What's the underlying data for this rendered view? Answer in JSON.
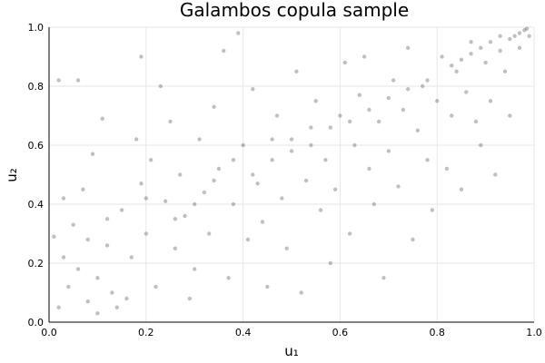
{
  "chart_data": {
    "type": "scatter",
    "title": "Galambos copula sample",
    "xlabel": "u₁",
    "ylabel": "u₂",
    "xlim": [
      0,
      1
    ],
    "ylim": [
      0,
      1
    ],
    "xticks": [
      "0.0",
      "0.2",
      "0.4",
      "0.6",
      "0.8",
      "1.0"
    ],
    "yticks": [
      "0.0",
      "0.2",
      "0.4",
      "0.6",
      "0.8",
      "1.0"
    ],
    "grid": true,
    "legend": "none",
    "point_color": "#000000",
    "points": [
      [
        0.02,
        0.05
      ],
      [
        0.04,
        0.12
      ],
      [
        0.01,
        0.29
      ],
      [
        0.06,
        0.18
      ],
      [
        0.03,
        0.42
      ],
      [
        0.08,
        0.07
      ],
      [
        0.05,
        0.33
      ],
      [
        0.1,
        0.15
      ],
      [
        0.12,
        0.26
      ],
      [
        0.07,
        0.45
      ],
      [
        0.09,
        0.57
      ],
      [
        0.02,
        0.82
      ],
      [
        0.06,
        0.82
      ],
      [
        0.11,
        0.69
      ],
      [
        0.13,
        0.1
      ],
      [
        0.15,
        0.38
      ],
      [
        0.17,
        0.22
      ],
      [
        0.14,
        0.05
      ],
      [
        0.19,
        0.47
      ],
      [
        0.18,
        0.62
      ],
      [
        0.2,
        0.3
      ],
      [
        0.22,
        0.12
      ],
      [
        0.24,
        0.41
      ],
      [
        0.21,
        0.55
      ],
      [
        0.25,
        0.68
      ],
      [
        0.23,
        0.8
      ],
      [
        0.19,
        0.9
      ],
      [
        0.26,
        0.25
      ],
      [
        0.28,
        0.36
      ],
      [
        0.3,
        0.18
      ],
      [
        0.27,
        0.5
      ],
      [
        0.32,
        0.44
      ],
      [
        0.29,
        0.08
      ],
      [
        0.31,
        0.62
      ],
      [
        0.33,
        0.3
      ],
      [
        0.35,
        0.52
      ],
      [
        0.34,
        0.73
      ],
      [
        0.36,
        0.92
      ],
      [
        0.38,
        0.4
      ],
      [
        0.37,
        0.15
      ],
      [
        0.39,
        0.98
      ],
      [
        0.4,
        0.6
      ],
      [
        0.41,
        0.28
      ],
      [
        0.43,
        0.47
      ],
      [
        0.42,
        0.79
      ],
      [
        0.44,
        0.34
      ],
      [
        0.46,
        0.55
      ],
      [
        0.45,
        0.12
      ],
      [
        0.47,
        0.7
      ],
      [
        0.48,
        0.42
      ],
      [
        0.5,
        0.62
      ],
      [
        0.49,
        0.25
      ],
      [
        0.51,
        0.85
      ],
      [
        0.53,
        0.48
      ],
      [
        0.52,
        0.1
      ],
      [
        0.54,
        0.66
      ],
      [
        0.56,
        0.38
      ],
      [
        0.55,
        0.75
      ],
      [
        0.57,
        0.55
      ],
      [
        0.58,
        0.2
      ],
      [
        0.6,
        0.7
      ],
      [
        0.59,
        0.45
      ],
      [
        0.61,
        0.88
      ],
      [
        0.63,
        0.6
      ],
      [
        0.62,
        0.3
      ],
      [
        0.64,
        0.77
      ],
      [
        0.66,
        0.52
      ],
      [
        0.65,
        0.9
      ],
      [
        0.67,
        0.4
      ],
      [
        0.68,
        0.68
      ],
      [
        0.7,
        0.58
      ],
      [
        0.69,
        0.15
      ],
      [
        0.71,
        0.82
      ],
      [
        0.73,
        0.72
      ],
      [
        0.72,
        0.46
      ],
      [
        0.74,
        0.93
      ],
      [
        0.76,
        0.65
      ],
      [
        0.75,
        0.28
      ],
      [
        0.77,
        0.8
      ],
      [
        0.78,
        0.55
      ],
      [
        0.8,
        0.75
      ],
      [
        0.79,
        0.38
      ],
      [
        0.81,
        0.9
      ],
      [
        0.83,
        0.7
      ],
      [
        0.82,
        0.52
      ],
      [
        0.84,
        0.85
      ],
      [
        0.86,
        0.78
      ],
      [
        0.85,
        0.45
      ],
      [
        0.87,
        0.95
      ],
      [
        0.88,
        0.68
      ],
      [
        0.9,
        0.88
      ],
      [
        0.89,
        0.6
      ],
      [
        0.91,
        0.75
      ],
      [
        0.93,
        0.92
      ],
      [
        0.92,
        0.5
      ],
      [
        0.94,
        0.85
      ],
      [
        0.96,
        0.97
      ],
      [
        0.95,
        0.7
      ],
      [
        0.97,
        0.93
      ],
      [
        0.98,
        0.99
      ],
      [
        0.99,
        0.97
      ],
      [
        0.985,
        0.995
      ],
      [
        0.97,
        0.98
      ],
      [
        0.95,
        0.96
      ],
      [
        0.93,
        0.97
      ],
      [
        0.91,
        0.95
      ],
      [
        0.89,
        0.93
      ],
      [
        0.87,
        0.91
      ],
      [
        0.85,
        0.89
      ],
      [
        0.83,
        0.87
      ],
      [
        0.1,
        0.03
      ],
      [
        0.16,
        0.08
      ],
      [
        0.03,
        0.22
      ],
      [
        0.08,
        0.28
      ],
      [
        0.12,
        0.35
      ],
      [
        0.2,
        0.42
      ],
      [
        0.26,
        0.35
      ],
      [
        0.3,
        0.4
      ],
      [
        0.34,
        0.48
      ],
      [
        0.38,
        0.55
      ],
      [
        0.42,
        0.5
      ],
      [
        0.46,
        0.62
      ],
      [
        0.5,
        0.58
      ],
      [
        0.54,
        0.6
      ],
      [
        0.58,
        0.66
      ],
      [
        0.62,
        0.68
      ],
      [
        0.66,
        0.72
      ],
      [
        0.7,
        0.76
      ],
      [
        0.74,
        0.79
      ],
      [
        0.78,
        0.82
      ]
    ]
  }
}
